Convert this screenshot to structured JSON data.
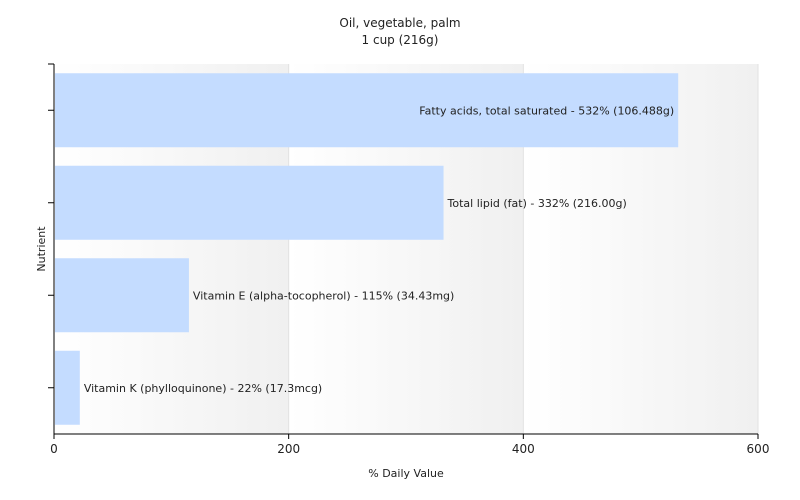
{
  "chart_data": {
    "type": "bar",
    "orientation": "horizontal",
    "title": "Oil, vegetable, palm",
    "subtitle": "1 cup (216g)",
    "xlabel": "% Daily Value",
    "ylabel": "Nutrient",
    "xlim": [
      0,
      600
    ],
    "x_ticks": [
      0,
      200,
      400,
      600
    ],
    "x_tick_labels": [
      "0",
      "200",
      "400",
      "600"
    ],
    "grid": "vertical",
    "bar_color": "#c4dcff",
    "categories": [
      "Fatty acids, total saturated",
      "Total lipid (fat)",
      "Vitamin E (alpha-tocopherol)",
      "Vitamin K (phylloquinone)"
    ],
    "values": [
      532,
      332,
      115,
      22
    ],
    "data_labels": [
      "Fatty acids, total saturated - 532% (106.488g)",
      "Total lipid (fat) - 332% (216.00g)",
      "Vitamin E (alpha-tocopherol) - 115% (34.43mg)",
      "Vitamin K (phylloquinone) - 22% (17.3mcg)"
    ]
  }
}
